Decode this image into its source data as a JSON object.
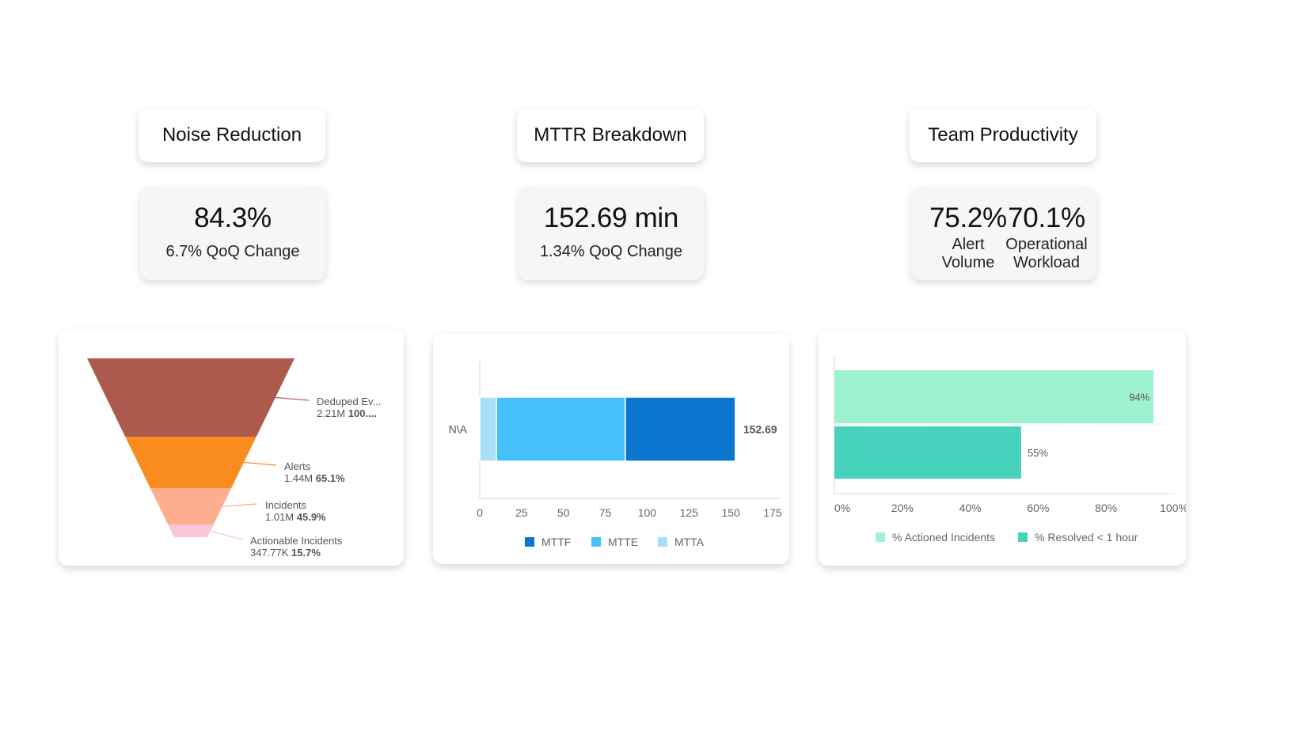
{
  "sections": [
    {
      "title": "Noise Reduction"
    },
    {
      "title": "MTTR Breakdown"
    },
    {
      "title": "Team Productivity"
    }
  ],
  "metrics": {
    "noise": {
      "value": "84.3%",
      "sub": "6.7% QoQ Change"
    },
    "mttr": {
      "value": "152.69 min",
      "sub": "1.34% QoQ Change"
    },
    "productivity": [
      {
        "value": "75.2%",
        "label_line1": "Alert",
        "label_line2": "Volume"
      },
      {
        "value": "70.1%",
        "label_line1": "Operational",
        "label_line2": "Workload"
      }
    ]
  },
  "colors": {
    "funnel": [
      "#ad5a4e",
      "#fa8c1f",
      "#fdae8e",
      "#f9c6dc"
    ],
    "mttf": "#0b76cd",
    "mtte": "#46c0fb",
    "mtta": "#a8dff7",
    "actioned": "#9ef2d2",
    "resolved": "#46d2bb"
  },
  "chart_data": [
    {
      "type": "funnel",
      "stages": [
        {
          "name": "Deduped Ev...",
          "value_label": "2.21M",
          "percent_label": "100....",
          "value": 2210000,
          "percent": 100
        },
        {
          "name": "Alerts",
          "value_label": "1.44M",
          "percent_label": "65.1%",
          "value": 1440000,
          "percent": 65.1
        },
        {
          "name": "Incidents",
          "value_label": "1.01M",
          "percent_label": "45.9%",
          "value": 1010000,
          "percent": 45.9
        },
        {
          "name": "Actionable Incidents",
          "value_label": "347.77K",
          "percent_label": "15.7%",
          "value": 347770,
          "percent": 15.7
        }
      ]
    },
    {
      "type": "bar",
      "orientation": "horizontal",
      "stacked": true,
      "categories": [
        "N\\A"
      ],
      "series": [
        {
          "name": "MTTA",
          "values": [
            10
          ]
        },
        {
          "name": "MTTE",
          "values": [
            77
          ]
        },
        {
          "name": "MTTF",
          "values": [
            65.69
          ]
        }
      ],
      "total_label": "152.69",
      "xlim": [
        0,
        175
      ],
      "xticks": [
        "0",
        "25",
        "50",
        "75",
        "100",
        "125",
        "150",
        "175"
      ],
      "legend": [
        {
          "name": "MTTF"
        },
        {
          "name": "MTTE"
        },
        {
          "name": "MTTA"
        }
      ],
      "legend_position": "bottom"
    },
    {
      "type": "bar",
      "orientation": "horizontal",
      "series": [
        {
          "name": "% Actioned Incidents",
          "values": [
            94
          ],
          "label": "94%"
        },
        {
          "name": "% Resolved < 1 hour",
          "values": [
            55
          ],
          "label": "55%"
        }
      ],
      "xlim": [
        0,
        100
      ],
      "xticks": [
        "0%",
        "20%",
        "40%",
        "60%",
        "80%",
        "100%"
      ],
      "legend_position": "bottom"
    }
  ]
}
